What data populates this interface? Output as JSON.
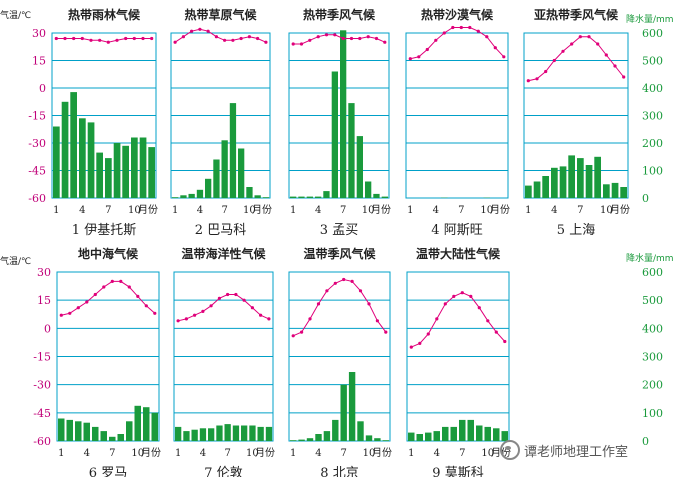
{
  "common": {
    "temp_axis_label": "气温/℃",
    "precip_axis_label": "降水量/mm",
    "month_suffix": "月份",
    "temp_ticks": [
      "30",
      "15",
      "0",
      "-15",
      "-30",
      "-45",
      "-60"
    ],
    "precip_ticks": [
      "600",
      "500",
      "400",
      "300",
      "200",
      "100",
      "0"
    ],
    "month_ticks": [
      "1",
      "4",
      "7",
      "10"
    ],
    "colors": {
      "grid": "#00a0c8",
      "bar": "#1a9a3c",
      "line": "#e0007a",
      "text": "#222222",
      "label": "#c00078"
    }
  },
  "chart_data": [
    {
      "type": "bar+line",
      "title": "热带雨林气候",
      "caption": "1 伊基托斯",
      "ylim_temp": [
        -60,
        30
      ],
      "ylim_precip": [
        0,
        600
      ],
      "temp": [
        27,
        27,
        27,
        27,
        26,
        26,
        25,
        26,
        27,
        27,
        27,
        27
      ],
      "precip": [
        260,
        350,
        385,
        290,
        275,
        165,
        145,
        200,
        190,
        220,
        220,
        185
      ]
    },
    {
      "type": "bar+line",
      "title": "热带草原气候",
      "caption": "2 巴马科",
      "ylim_temp": [
        -60,
        30
      ],
      "ylim_precip": [
        0,
        600
      ],
      "temp": [
        25,
        28,
        31,
        32,
        31,
        28,
        26,
        26,
        27,
        28,
        27,
        25
      ],
      "precip": [
        3,
        10,
        15,
        30,
        70,
        140,
        210,
        345,
        180,
        40,
        10,
        3
      ]
    },
    {
      "type": "bar+line",
      "title": "热带季风气候",
      "caption": "3 孟买",
      "ylim_temp": [
        -60,
        30
      ],
      "ylim_precip": [
        0,
        600
      ],
      "temp": [
        24,
        24,
        26,
        28,
        29,
        29,
        27,
        27,
        27,
        28,
        27,
        25
      ],
      "precip": [
        5,
        5,
        5,
        5,
        25,
        460,
        610,
        345,
        225,
        60,
        15,
        5
      ]
    },
    {
      "type": "bar+line",
      "title": "热带沙漠气候",
      "caption": "4 阿斯旺",
      "ylim_temp": [
        -60,
        30
      ],
      "ylim_precip": [
        0,
        600
      ],
      "temp": [
        16,
        17,
        21,
        26,
        30,
        33,
        33,
        33,
        31,
        28,
        22,
        17
      ],
      "precip": [
        0,
        0,
        0,
        0,
        1,
        0,
        0,
        0,
        0,
        1,
        0,
        0
      ]
    },
    {
      "type": "bar+line",
      "title": "亚热带季风气候",
      "caption": "5 上海",
      "ylim_temp": [
        -60,
        30
      ],
      "ylim_precip": [
        0,
        600
      ],
      "temp": [
        4,
        5,
        9,
        15,
        20,
        24,
        28,
        28,
        24,
        18,
        12,
        6
      ],
      "precip": [
        45,
        60,
        80,
        110,
        115,
        155,
        145,
        120,
        150,
        50,
        55,
        40
      ]
    },
    {
      "type": "bar+line",
      "title": "地中海气候",
      "caption": "6 罗马",
      "ylim_temp": [
        -60,
        30
      ],
      "ylim_precip": [
        0,
        600
      ],
      "temp": [
        7,
        8,
        11,
        14,
        18,
        22,
        25,
        25,
        22,
        17,
        12,
        8
      ],
      "precip": [
        80,
        75,
        70,
        65,
        50,
        35,
        15,
        25,
        70,
        125,
        120,
        100
      ]
    },
    {
      "type": "bar+line",
      "title": "温带海洋性气候",
      "caption": "7 伦敦",
      "ylim_temp": [
        -60,
        30
      ],
      "ylim_precip": [
        0,
        600
      ],
      "temp": [
        4,
        5,
        7,
        9,
        12,
        16,
        18,
        18,
        15,
        11,
        7,
        5
      ],
      "precip": [
        50,
        35,
        40,
        45,
        45,
        55,
        60,
        55,
        55,
        55,
        50,
        50
      ]
    },
    {
      "type": "bar+line",
      "title": "温带季风气候",
      "caption": "8 北京",
      "ylim_temp": [
        -60,
        30
      ],
      "ylim_precip": [
        0,
        600
      ],
      "temp": [
        -4,
        -2,
        5,
        13,
        20,
        24,
        26,
        25,
        20,
        13,
        4,
        -2
      ],
      "precip": [
        3,
        5,
        10,
        25,
        35,
        75,
        200,
        245,
        70,
        20,
        10,
        3
      ]
    },
    {
      "type": "bar+line",
      "title": "温带大陆性气候",
      "caption": "9 莫斯科",
      "ylim_temp": [
        -60,
        30
      ],
      "ylim_precip": [
        0,
        600
      ],
      "temp": [
        -10,
        -8,
        -3,
        5,
        13,
        17,
        19,
        17,
        11,
        4,
        -2,
        -7
      ],
      "precip": [
        30,
        25,
        30,
        35,
        50,
        50,
        75,
        75,
        55,
        50,
        45,
        35
      ]
    }
  ],
  "watermark": {
    "text": "谭老师地理工作室",
    "icon": "wechat-icon"
  }
}
